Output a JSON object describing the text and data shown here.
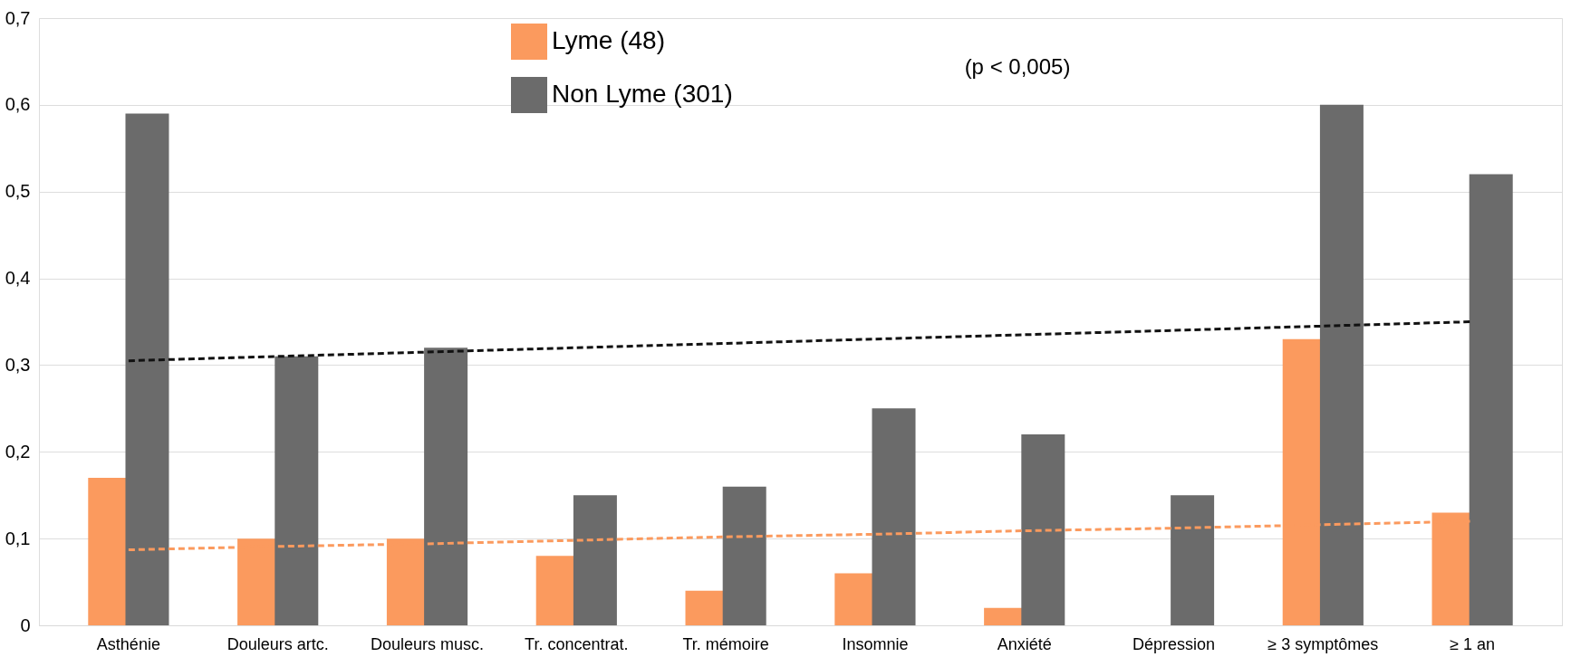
{
  "chart_data": {
    "type": "bar",
    "categories": [
      "Asthénie",
      "Douleurs artc.",
      "Douleurs musc.",
      "Tr. concentrat.",
      "Tr. mémoire",
      "Insomnie",
      "Anxiété",
      "Dépression",
      "≥ 3 symptômes",
      "≥ 1 an"
    ],
    "series": [
      {
        "name": "Lyme (48)",
        "color": "#fb9a5e",
        "values": [
          0.17,
          0.1,
          0.1,
          0.08,
          0.04,
          0.06,
          0.02,
          0,
          0.33,
          0.13
        ]
      },
      {
        "name": "Non Lyme (301)",
        "color": "#6b6b6b",
        "values": [
          0.59,
          0.31,
          0.32,
          0.15,
          0.16,
          0.25,
          0.22,
          0.15,
          0.6,
          0.52
        ]
      },
      {
        "type": "line",
        "color": "#fb9a5e",
        "line_style": "dashed",
        "values": [
          0.087,
          0.091,
          0.094,
          0.098,
          0.102,
          0.105,
          0.109,
          0.112,
          0.116,
          0.12
        ]
      },
      {
        "type": "line",
        "color": "#111111",
        "line_style": "dashed",
        "values": [
          0.305,
          0.31,
          0.315,
          0.32,
          0.325,
          0.33,
          0.335,
          0.34,
          0.345,
          0.35
        ]
      }
    ],
    "ylim": [
      0,
      0.7
    ],
    "yticks": [
      0,
      {
        "value": 0.1,
        "label": "0,1"
      },
      {
        "value": 0.2,
        "label": "0,2"
      },
      {
        "value": 0.3,
        "label": "0,3"
      },
      {
        "value": 0.4,
        "label": "0,4"
      },
      {
        "value": 0.5,
        "label": "0,5"
      },
      {
        "value": 0.6,
        "label": "0,6"
      },
      {
        "value": 0.7,
        "label": "0,7"
      }
    ],
    "grid": "y",
    "legend": "top",
    "marker": "none",
    "annotations": [
      "(p < 0,005)"
    ]
  }
}
